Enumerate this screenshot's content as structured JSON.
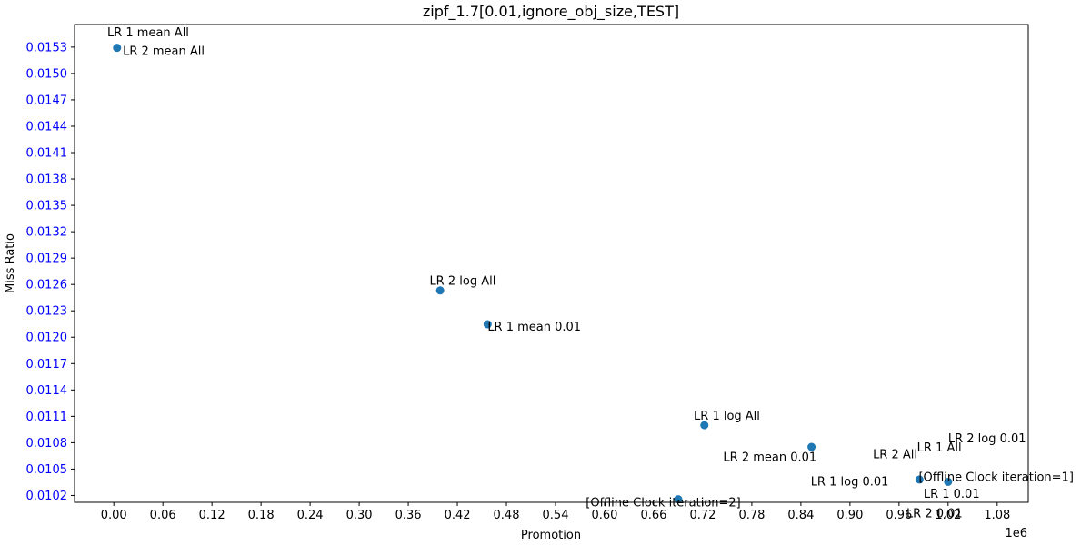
{
  "chart_data": {
    "type": "scatter",
    "title": "zipf_1.7[0.01,ignore_obj_size,TEST]",
    "xlabel": "Promotion",
    "ylabel": "Miss Ratio",
    "x_offset_label": "1e6",
    "xlim": [
      -0.048,
      1.118
    ],
    "ylim": [
      0.010122,
      0.015557
    ],
    "x_ticks": [
      0.0,
      0.06,
      0.12,
      0.18,
      0.24,
      0.3,
      0.36,
      0.42,
      0.48,
      0.54,
      0.6,
      0.66,
      0.72,
      0.78,
      0.84,
      0.9,
      0.96,
      1.02,
      1.08
    ],
    "x_tick_labels": [
      "0.00",
      "0.06",
      "0.12",
      "0.18",
      "0.24",
      "0.30",
      "0.36",
      "0.42",
      "0.48",
      "0.54",
      "0.60",
      "0.66",
      "0.72",
      "0.78",
      "0.84",
      "0.90",
      "0.96",
      "1.02",
      "1.08"
    ],
    "y_ticks": [
      0.0102,
      0.0105,
      0.0108,
      0.0111,
      0.0114,
      0.0117,
      0.012,
      0.0123,
      0.0126,
      0.0129,
      0.0132,
      0.0135,
      0.0138,
      0.0141,
      0.0144,
      0.0147,
      0.015,
      0.0153
    ],
    "y_tick_labels": [
      "0.0102",
      "0.0105",
      "0.0108",
      "0.0111",
      "0.0114",
      "0.0117",
      "0.0120",
      "0.0123",
      "0.0126",
      "0.0129",
      "0.0132",
      "0.0135",
      "0.0138",
      "0.0141",
      "0.0144",
      "0.0147",
      "0.0150",
      "0.0153"
    ],
    "grid": false,
    "colors": {
      "point": "#1f77b4",
      "y_tick_labels": "#0000ff",
      "text": "#000000"
    },
    "points": [
      {
        "x": 0.004,
        "y": 0.015292
      },
      {
        "x": 0.399,
        "y": 0.012532
      },
      {
        "x": 0.457,
        "y": 0.012147
      },
      {
        "x": 0.69,
        "y": 0.010157
      },
      {
        "x": 0.722,
        "y": 0.010999
      },
      {
        "x": 0.853,
        "y": 0.010752
      },
      {
        "x": 0.985,
        "y": 0.010381
      },
      {
        "x": 1.02,
        "y": 0.010355
      }
    ],
    "annotations": [
      {
        "text": "LR 1 mean All",
        "x": -0.008,
        "y": 0.015475
      },
      {
        "text": "LR 2 mean All",
        "x": 0.011,
        "y": 0.015265
      },
      {
        "text": "LR 2 log All",
        "x": 0.386,
        "y": 0.012648
      },
      {
        "text": "LR 1 mean 0.01",
        "x": 0.457,
        "y": 0.012126
      },
      {
        "text": "LR 1 log All",
        "x": 0.709,
        "y": 0.011116
      },
      {
        "text": "LR 2 mean 0.01",
        "x": 0.745,
        "y": 0.010645
      },
      {
        "text": "LR 2 log 0.01",
        "x": 1.02,
        "y": 0.010858
      },
      {
        "text": "LR 2 All",
        "x": 0.928,
        "y": 0.010677
      },
      {
        "text": "LR 1 All",
        "x": 0.982,
        "y": 0.010753
      },
      {
        "text": "[Offline Clock iteration=1]",
        "x": 0.984,
        "y": 0.010418
      },
      {
        "text": "LR 1 log 0.01",
        "x": 0.852,
        "y": 0.010366
      },
      {
        "text": "LR 1 0.01",
        "x": 0.99,
        "y": 0.010226
      },
      {
        "text": "[Offline Clock iteration=2]",
        "x": 0.577,
        "y": 0.010125
      },
      {
        "text": "LR 2 0.01",
        "x": 0.969,
        "y": 0.010001
      }
    ]
  }
}
